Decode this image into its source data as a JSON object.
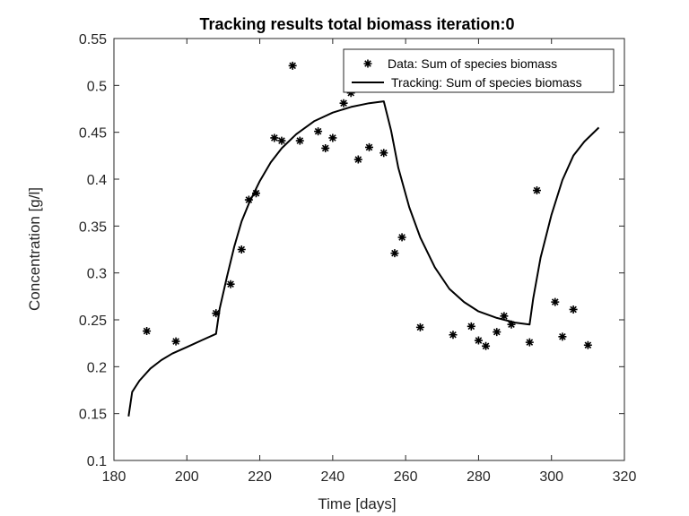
{
  "chart_data": {
    "type": "scatter",
    "title": "Tracking results total biomass iteration:0",
    "xlabel": "Time [days]",
    "ylabel": "Concentration [g/l]",
    "xlim": [
      180,
      320
    ],
    "ylim": [
      0.1,
      0.55
    ],
    "xticks": [
      180,
      200,
      220,
      240,
      260,
      280,
      300,
      320
    ],
    "yticks": [
      0.1,
      0.15,
      0.2,
      0.25,
      0.3,
      0.35,
      0.4,
      0.45,
      0.5,
      0.55
    ],
    "xtick_labels": [
      "180",
      "200",
      "220",
      "240",
      "260",
      "280",
      "300",
      "320"
    ],
    "ytick_labels": [
      "0.1",
      "0.15",
      "0.2",
      "0.25",
      "0.3",
      "0.35",
      "0.4",
      "0.45",
      "0.5",
      "0.55"
    ],
    "grid": false,
    "box": true,
    "legend_position": "top-right",
    "series": [
      {
        "name": "Data: Sum of species biomass",
        "kind": "markers",
        "marker": "asterisk",
        "color": "#000000",
        "x": [
          189,
          197,
          208,
          212,
          215,
          217,
          219,
          224,
          226,
          229,
          231,
          236,
          238,
          240,
          243,
          245,
          247,
          250,
          254,
          257,
          259,
          264,
          273,
          278,
          280,
          282,
          285,
          287,
          289,
          294,
          296,
          301,
          303,
          306,
          310
        ],
        "y": [
          0.238,
          0.227,
          0.257,
          0.288,
          0.325,
          0.378,
          0.385,
          0.444,
          0.441,
          0.521,
          0.441,
          0.451,
          0.433,
          0.444,
          0.481,
          0.492,
          0.421,
          0.434,
          0.428,
          0.321,
          0.338,
          0.242,
          0.234,
          0.243,
          0.228,
          0.222,
          0.237,
          0.254,
          0.245,
          0.226,
          0.388,
          0.269,
          0.232,
          0.261,
          0.223
        ]
      },
      {
        "name": "Tracking: Sum of species biomass",
        "kind": "line",
        "color": "#000000",
        "x": [
          184,
          185,
          187,
          190,
          193,
          196,
          200,
          204,
          208,
          209,
          211,
          213,
          215,
          217,
          220,
          223,
          226,
          230,
          235,
          240,
          245,
          250,
          254,
          256,
          258,
          261,
          264,
          268,
          272,
          276,
          280,
          285,
          290,
          294,
          295,
          297,
          300,
          303,
          306,
          309,
          313
        ],
        "y": [
          0.147,
          0.173,
          0.185,
          0.198,
          0.207,
          0.214,
          0.221,
          0.228,
          0.235,
          0.262,
          0.296,
          0.328,
          0.355,
          0.374,
          0.398,
          0.418,
          0.433,
          0.448,
          0.462,
          0.471,
          0.477,
          0.481,
          0.483,
          0.452,
          0.412,
          0.37,
          0.338,
          0.306,
          0.283,
          0.269,
          0.259,
          0.252,
          0.247,
          0.245,
          0.273,
          0.316,
          0.362,
          0.399,
          0.425,
          0.44,
          0.455
        ]
      }
    ]
  }
}
